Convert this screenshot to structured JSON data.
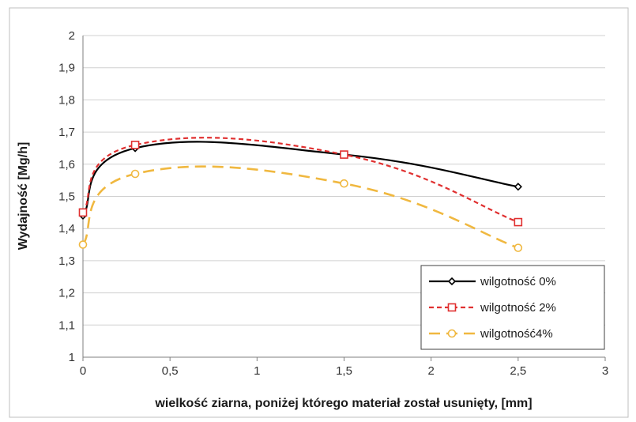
{
  "chart_data": {
    "type": "line",
    "xlabel": "wielkość ziarna, poniżej którego materiał został usunięty, [mm]",
    "ylabel": "Wydajność [Mg/h]",
    "xlim": [
      0,
      3
    ],
    "ylim": [
      1,
      2
    ],
    "x_ticks": [
      "0",
      "0,5",
      "1",
      "1,5",
      "2",
      "2,5",
      "3"
    ],
    "y_ticks": [
      "1",
      "1,1",
      "1,2",
      "1,3",
      "1,4",
      "1,5",
      "1,6",
      "1,7",
      "1,8",
      "1,9",
      "2"
    ],
    "grid": "horizontal",
    "legend_position": "bottom-right",
    "series": [
      {
        "name": "wilgotność 0%",
        "x": [
          0,
          0.3,
          1.5,
          2.5
        ],
        "y": [
          1.44,
          1.65,
          1.63,
          1.53
        ],
        "color": "#000000",
        "marker": "diamond",
        "line_style": "solid"
      },
      {
        "name": "wilgotność 2%",
        "x": [
          0,
          0.3,
          1.5,
          2.5
        ],
        "y": [
          1.45,
          1.66,
          1.63,
          1.42
        ],
        "color": "#e03030",
        "marker": "square",
        "line_style": "short-dash"
      },
      {
        "name": "wilgotność4%",
        "x": [
          0,
          0.3,
          1.5,
          2.5
        ],
        "y": [
          1.35,
          1.57,
          1.54,
          1.34
        ],
        "color": "#f0b840",
        "marker": "circle",
        "line_style": "long-dash"
      }
    ]
  }
}
